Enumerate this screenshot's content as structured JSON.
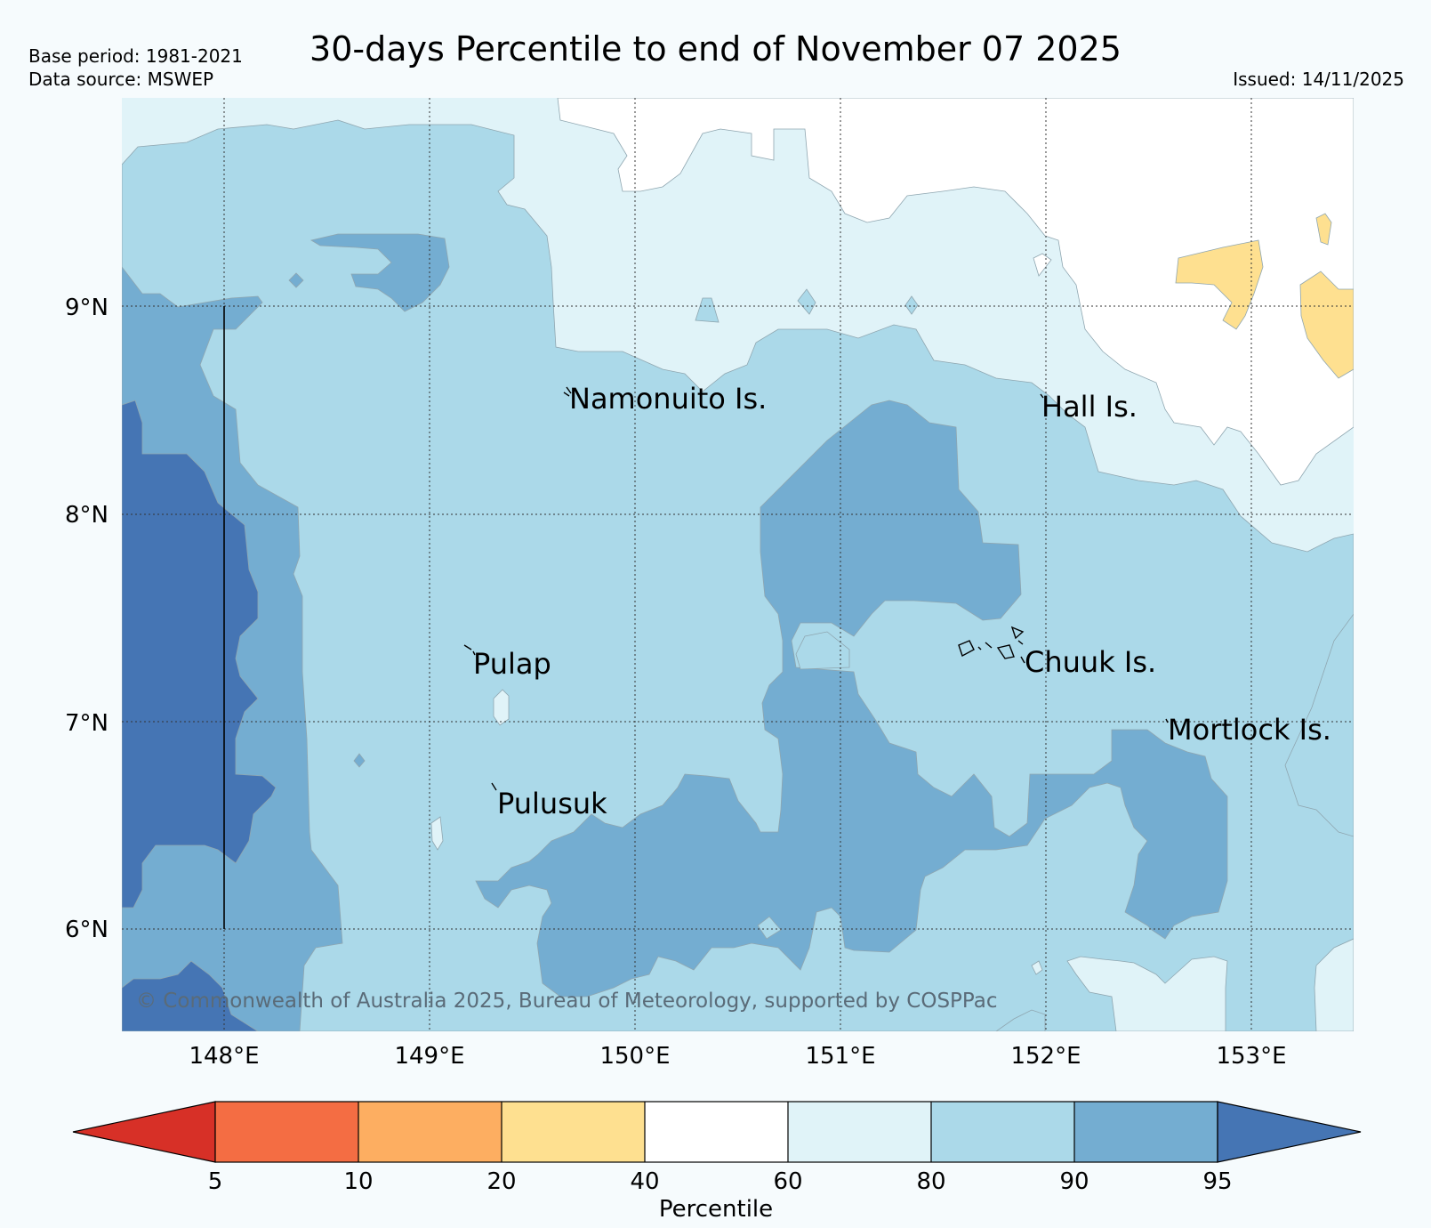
{
  "header": {
    "title": "30-days Percentile to end of November 07 2025",
    "base_period": "Base period: 1981-2021",
    "data_source": "Data source: MSWEP",
    "issued": "Issued: 14/11/2025"
  },
  "map": {
    "latitude_labels": [
      "9°N",
      "8°N",
      "7°N",
      "6°N"
    ],
    "longitude_labels": [
      "148°E",
      "149°E",
      "150°E",
      "151°E",
      "152°E",
      "153°E"
    ],
    "places": {
      "namonuito": "Namonuito Is.",
      "hall": "Hall Is.",
      "pulap": "Pulap",
      "chuuk": "Chuuk Is.",
      "mortlock": "Mortlock Is.",
      "pulusuk": "Pulusuk"
    },
    "copyright": "© Commonwealth of Australia 2025, Bureau of Meteorology, supported by COSPPac"
  },
  "colorbar": {
    "label": "Percentile",
    "ticks": [
      "5",
      "10",
      "20",
      "40",
      "60",
      "80",
      "90",
      "95"
    ],
    "colors": {
      "below_5": "#d73027",
      "p5_10": "#f46d43",
      "p10_20": "#fdae61",
      "p20_40": "#fee090",
      "p40_60": "#ffffff",
      "p60_80": "#e0f3f8",
      "p80_90": "#abd9e9",
      "p90_95": "#74add1",
      "above_95": "#4575b4"
    }
  }
}
